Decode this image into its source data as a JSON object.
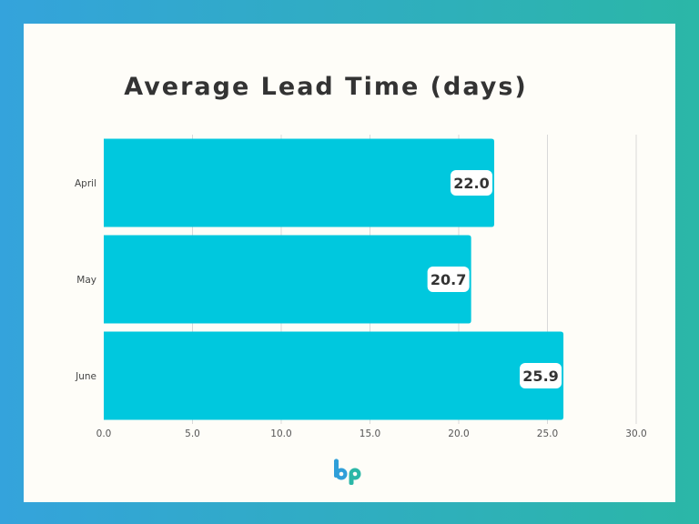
{
  "chart_data": {
    "type": "bar",
    "orientation": "horizontal",
    "title": "Average Lead Time (days)",
    "categories": [
      "April",
      "May",
      "June"
    ],
    "values": [
      22.0,
      20.7,
      25.9
    ],
    "data_labels": [
      "22.0",
      "20.7",
      "25.9"
    ],
    "xlim": [
      0,
      30
    ],
    "x_ticks": [
      "0.0",
      "5.0",
      "10.0",
      "15.0",
      "20.0",
      "25.0",
      "30.0"
    ],
    "grid": "vertical",
    "bar_color": "#00c8de"
  },
  "logo": {
    "name": "brand-logo-icon",
    "colors": [
      "#2f9fd9",
      "#2bb7a7"
    ]
  }
}
